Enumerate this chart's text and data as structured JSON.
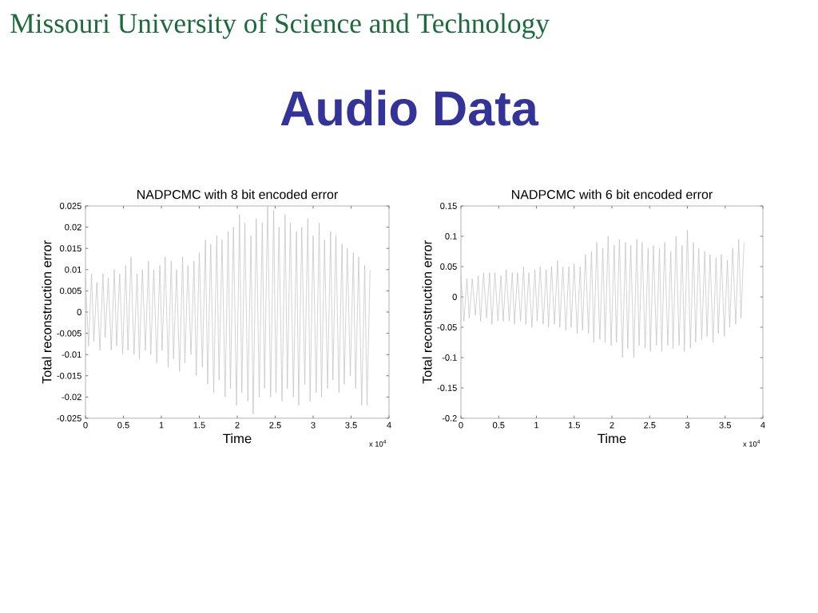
{
  "chart_data": [
    {
      "type": "other",
      "title": "Audio Data",
      "annotations": [
        "Missouri University of Science and Technology"
      ]
    },
    {
      "type": "line",
      "title": "NADPCMC with 8 bit encoded error",
      "xlabel": "Time",
      "ylabel": "Total reconstruction error",
      "x": [
        0,
        0.04,
        0.08,
        0.11,
        0.15,
        0.19,
        0.23,
        0.26,
        0.3,
        0.34,
        0.38,
        0.41,
        0.45,
        0.49,
        0.53,
        0.56,
        0.6,
        0.64,
        0.68,
        0.71,
        0.75,
        0.79,
        0.83,
        0.86,
        0.9,
        0.94,
        0.98,
        1.01,
        1.05,
        1.09,
        1.13,
        1.16,
        1.2,
        1.24,
        1.28,
        1.31,
        1.35,
        1.39,
        1.43,
        1.46,
        1.5,
        1.54,
        1.58,
        1.61,
        1.65,
        1.69,
        1.73,
        1.76,
        1.8,
        1.84,
        1.88,
        1.91,
        1.95,
        1.99,
        2.03,
        2.06,
        2.1,
        2.14,
        2.18,
        2.21,
        2.25,
        2.29,
        2.33,
        2.36,
        2.4,
        2.44,
        2.48,
        2.51,
        2.55,
        2.59,
        2.63,
        2.66,
        2.7,
        2.74,
        2.78,
        2.81,
        2.85,
        2.89,
        2.93,
        2.96,
        3,
        3.04,
        3.08,
        3.11,
        3.15,
        3.19,
        3.23,
        3.26,
        3.3,
        3.34,
        3.38,
        3.41,
        3.45,
        3.49,
        3.53,
        3.56,
        3.6,
        3.64,
        3.68,
        3.71,
        3.75
      ],
      "values": [
        0.008,
        -0.008,
        0.009,
        -0.007,
        0.007,
        -0.009,
        0.009,
        -0.006,
        0.008,
        -0.009,
        0.01,
        -0.008,
        0.009,
        -0.01,
        0.011,
        -0.009,
        0.013,
        -0.01,
        0.009,
        -0.011,
        0.01,
        -0.009,
        0.012,
        -0.01,
        0.01,
        -0.012,
        0.011,
        -0.009,
        0.013,
        -0.013,
        0.012,
        -0.011,
        0.01,
        -0.014,
        0.013,
        -0.012,
        0.011,
        -0.01,
        0.012,
        -0.015,
        0.014,
        -0.013,
        0.017,
        -0.017,
        0.016,
        -0.019,
        0.018,
        -0.016,
        0.017,
        -0.02,
        0.019,
        -0.018,
        0.02,
        -0.022,
        0.023,
        -0.019,
        0.021,
        -0.021,
        0.018,
        -0.024,
        0.022,
        -0.02,
        0.021,
        -0.018,
        0.025,
        -0.02,
        0.024,
        -0.019,
        0.02,
        -0.021,
        0.023,
        -0.018,
        0.021,
        -0.02,
        0.019,
        -0.022,
        0.02,
        -0.017,
        0.022,
        -0.021,
        0.018,
        -0.019,
        0.021,
        -0.02,
        0.017,
        -0.018,
        0.019,
        -0.016,
        0.018,
        -0.019,
        0.016,
        -0.017,
        0.015,
        -0.015,
        0.014,
        -0.018,
        0.013,
        -0.022,
        0.011,
        -0.022,
        0.01
      ],
      "color": "#bdbdbd",
      "xlim": [
        0,
        4
      ],
      "xticks": [
        0,
        0.5,
        1,
        1.5,
        2,
        2.5,
        3,
        3.5,
        4
      ],
      "ylim": [
        -0.025,
        0.025
      ],
      "yticks": [
        -0.025,
        -0.02,
        -0.015,
        -0.01,
        -0.005,
        0,
        0.005,
        0.01,
        0.015,
        0.02,
        0.025
      ],
      "annotations": [
        "x 10$^{4}$"
      ]
    },
    {
      "type": "line",
      "title": "NADPCMC with 6 bit encoded error",
      "xlabel": "Time",
      "ylabel": "Total reconstruction error",
      "x": [
        0,
        0.04,
        0.08,
        0.11,
        0.15,
        0.19,
        0.23,
        0.26,
        0.3,
        0.34,
        0.38,
        0.41,
        0.45,
        0.49,
        0.53,
        0.56,
        0.6,
        0.64,
        0.68,
        0.71,
        0.75,
        0.79,
        0.83,
        0.86,
        0.9,
        0.94,
        0.98,
        1.01,
        1.05,
        1.09,
        1.13,
        1.16,
        1.2,
        1.24,
        1.28,
        1.31,
        1.35,
        1.39,
        1.43,
        1.46,
        1.5,
        1.54,
        1.58,
        1.61,
        1.65,
        1.69,
        1.73,
        1.76,
        1.8,
        1.84,
        1.88,
        1.91,
        1.95,
        1.99,
        2.03,
        2.06,
        2.1,
        2.14,
        2.18,
        2.21,
        2.25,
        2.29,
        2.33,
        2.36,
        2.4,
        2.44,
        2.48,
        2.51,
        2.55,
        2.59,
        2.63,
        2.66,
        2.7,
        2.74,
        2.78,
        2.81,
        2.85,
        2.89,
        2.93,
        2.96,
        3,
        3.04,
        3.08,
        3.11,
        3.15,
        3.19,
        3.23,
        3.26,
        3.3,
        3.34,
        3.38,
        3.41,
        3.45,
        3.49,
        3.53,
        3.56,
        3.6,
        3.64,
        3.68,
        3.71,
        3.75
      ],
      "values": [
        0.035,
        -0.04,
        0.03,
        -0.035,
        0.03,
        -0.03,
        0.035,
        -0.04,
        0.04,
        -0.035,
        0.04,
        -0.045,
        0.04,
        -0.04,
        0.035,
        -0.04,
        0.045,
        -0.04,
        0.04,
        -0.045,
        0.04,
        -0.04,
        0.05,
        -0.045,
        0.04,
        -0.05,
        0.045,
        -0.04,
        0.05,
        -0.045,
        0.045,
        -0.05,
        0.05,
        -0.045,
        0.06,
        -0.05,
        0.05,
        -0.055,
        0.05,
        -0.05,
        0.055,
        -0.06,
        0.05,
        -0.055,
        0.07,
        -0.06,
        0.075,
        -0.075,
        0.09,
        -0.07,
        0.08,
        -0.075,
        0.1,
        -0.08,
        0.085,
        -0.075,
        0.095,
        -0.1,
        0.09,
        -0.085,
        0.085,
        -0.1,
        0.095,
        -0.08,
        0.09,
        -0.085,
        0.08,
        -0.09,
        0.085,
        -0.08,
        0.08,
        -0.09,
        0.09,
        -0.08,
        0.075,
        -0.085,
        0.1,
        -0.08,
        0.085,
        -0.09,
        0.11,
        -0.085,
        0.09,
        -0.075,
        0.08,
        -0.07,
        0.075,
        -0.065,
        0.07,
        -0.075,
        0.065,
        -0.06,
        0.07,
        -0.065,
        0.06,
        -0.05,
        0.08,
        -0.045,
        0.095,
        -0.035,
        0.09
      ],
      "color": "#bdbdbd",
      "xlim": [
        0,
        4
      ],
      "xticks": [
        0,
        0.5,
        1,
        1.5,
        2,
        2.5,
        3,
        3.5,
        4
      ],
      "ylim": [
        -0.2,
        0.15
      ],
      "yticks": [
        -0.2,
        -0.15,
        -0.1,
        -0.05,
        0,
        0.05,
        0.1,
        0.15
      ],
      "annotations": [
        "x 10$^{4}$"
      ]
    }
  ]
}
